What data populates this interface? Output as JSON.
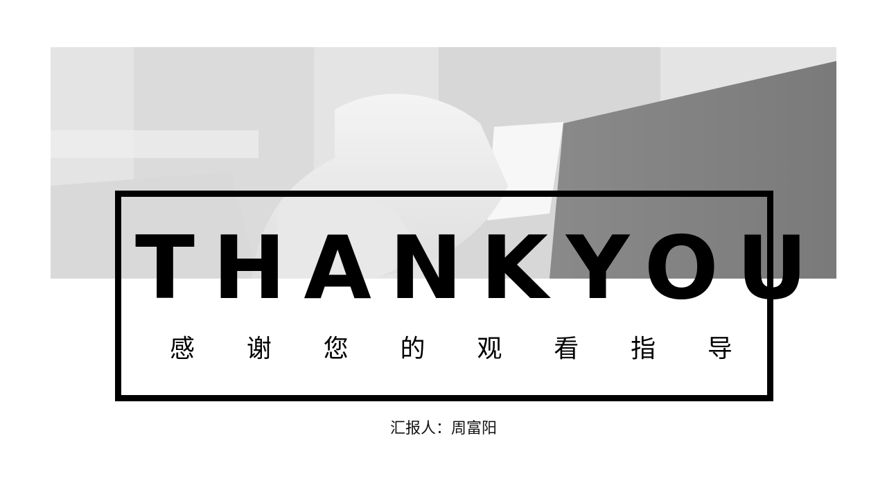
{
  "slide": {
    "title": "THANKYOU",
    "subtitle_chars": [
      "感",
      "谢",
      "您",
      "的",
      "观",
      "看",
      "指",
      "导"
    ],
    "reporter": "汇报人：周富阳"
  },
  "colors": {
    "background": "#ffffff",
    "frame": "#000000",
    "text": "#000000",
    "photo_tone": "#d0d0d0"
  }
}
